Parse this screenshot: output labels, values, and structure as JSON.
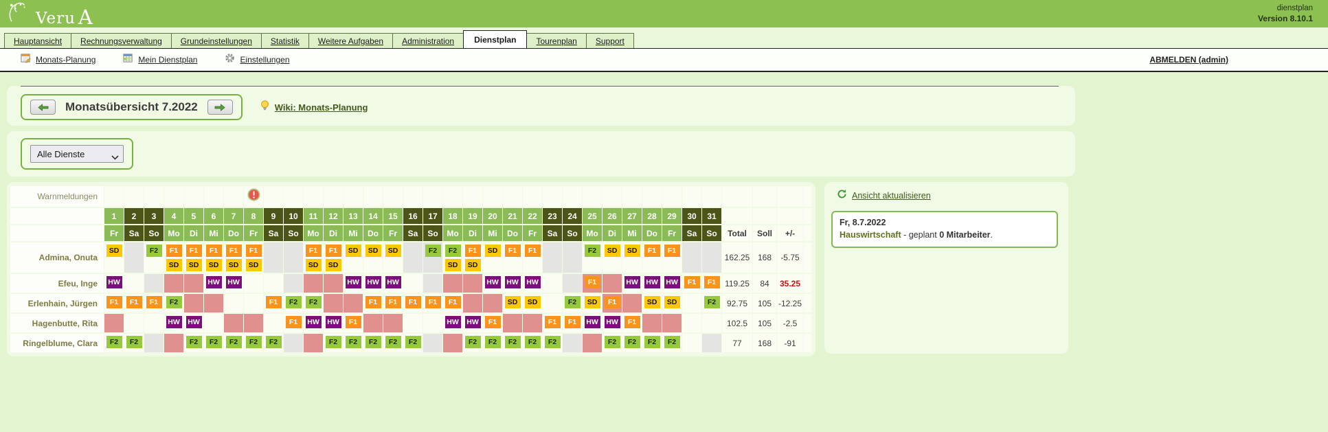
{
  "app": {
    "logo_text": "Veru",
    "logo_a": "A",
    "product": "dienstplan",
    "version": "Version 8.10.1"
  },
  "tabs": [
    {
      "label": "Hauptansicht",
      "active": false
    },
    {
      "label": "Rechnungsverwaltung",
      "active": false
    },
    {
      "label": "Grundeinstellungen",
      "active": false
    },
    {
      "label": "Statistik",
      "active": false
    },
    {
      "label": "Weitere Aufgaben",
      "active": false
    },
    {
      "label": "Administration",
      "active": false
    },
    {
      "label": "Dienstplan",
      "active": true
    },
    {
      "label": "Tourenplan",
      "active": false
    },
    {
      "label": "Support",
      "active": false
    }
  ],
  "toolbar": {
    "links": [
      {
        "label": "Monats-Planung",
        "icon": "calendar-edit-icon"
      },
      {
        "label": "Mein Dienstplan",
        "icon": "calendar-table-icon"
      },
      {
        "label": "Einstellungen",
        "icon": "gear-icon"
      }
    ],
    "logout_label": "ABMELDEN (admin)"
  },
  "month_nav": {
    "title": "Monatsübersicht 7.2022",
    "wiki_link": "Wiki: Monats-Planung"
  },
  "filter": {
    "selected": "Alle Dienste"
  },
  "colors": {
    "accent_green": "#8cc152",
    "header_weekday": "#8abb57",
    "header_weekend": "#4d5418",
    "cell_gray": "#e4e4e2",
    "cell_pink": "#e0908f",
    "diff_alert": "#cc1111"
  },
  "shifts": {
    "SD": {
      "bg": "#fcc800",
      "fg": "#151500"
    },
    "F1": {
      "bg": "#f8941e",
      "fg": "#ffffff"
    },
    "F2": {
      "bg": "#96c93d",
      "fg": "#1c2b00"
    },
    "HW": {
      "bg": "#7d0f7d",
      "fg": "#ffffff"
    }
  },
  "roster": {
    "warn_label": "Warnmeldungen",
    "warning_day": 8,
    "day_names": [
      "Fr",
      "Sa",
      "So",
      "Mo",
      "Di",
      "Mi",
      "Do",
      "Fr",
      "Sa",
      "So",
      "Mo",
      "Di",
      "Mi",
      "Do",
      "Fr",
      "Sa",
      "So",
      "Mo",
      "Di",
      "Mi",
      "Do",
      "Fr",
      "Sa",
      "So",
      "Mo",
      "Di",
      "Mi",
      "Do",
      "Fr",
      "Sa",
      "So"
    ],
    "weekend_days": [
      2,
      3,
      9,
      10,
      16,
      17,
      23,
      24,
      30,
      31
    ],
    "summary_headers": [
      "Total",
      "Soll",
      "+/-"
    ],
    "employees": [
      {
        "name": "Admina, Onuta",
        "cells": [
          "SD",
          "g",
          "F2",
          "F1+SD",
          "F1+SD",
          "F1+SD",
          "F1+SD",
          "F1+SD",
          "g",
          "g",
          "F1+SD",
          "F1+SD",
          "SD",
          "SD",
          "SD",
          "g",
          "g:F2",
          "F2+SD",
          "F1+SD",
          "SD",
          "F1",
          "F1",
          "g",
          "g",
          "F2",
          "SD",
          "SD",
          "F1",
          "F1",
          "g",
          "g"
        ],
        "total": "162.25",
        "soll": "168",
        "diff": "-5.75",
        "diff_alert": false
      },
      {
        "name": "Efeu, Inge",
        "cells": [
          "HW",
          "",
          "g",
          "p",
          "p",
          "HW",
          "HW",
          "",
          "",
          "g",
          "p",
          "p",
          "HW",
          "HW",
          "HW",
          "",
          "g",
          "p",
          "p",
          "HW",
          "HW",
          "HW",
          "",
          "g",
          "p:F1",
          "p",
          "HW",
          "HW",
          "HW",
          "F1",
          "F1"
        ],
        "total": "119.25",
        "soll": "84",
        "diff": "35.25",
        "diff_alert": true
      },
      {
        "name": "Erlenhain, Jürgen",
        "cells": [
          "F1",
          "F1",
          "F1",
          "F2",
          "p",
          "p",
          "",
          "",
          "F1",
          "F2",
          "F2",
          "p",
          "p",
          "F1",
          "F1",
          "F1",
          "F1",
          "F1",
          "p",
          "p",
          "SD",
          "SD",
          "",
          "F2",
          "SD",
          "p:F1",
          "p",
          "SD",
          "SD",
          "",
          "F2"
        ],
        "total": "92.75",
        "soll": "105",
        "diff": "-12.25",
        "diff_alert": false
      },
      {
        "name": "Hagenbutte, Rita",
        "cells": [
          "p",
          "",
          "",
          "HW",
          "HW",
          "",
          "p",
          "p",
          "",
          "F1",
          "HW",
          "HW",
          "F1",
          "p",
          "p",
          "",
          "",
          "HW",
          "HW",
          "F1",
          "p",
          "p",
          "F1",
          "F1",
          "HW",
          "HW",
          "F1",
          "p",
          "p",
          "",
          ""
        ],
        "total": "102.5",
        "soll": "105",
        "diff": "-2.5",
        "diff_alert": false
      },
      {
        "name": "Ringelblume, Clara",
        "cells": [
          "F2",
          "F2",
          "g",
          "p",
          "F2",
          "F2",
          "F2",
          "F2",
          "F2",
          "g",
          "p",
          "F2",
          "F2",
          "F2",
          "F2",
          "F2",
          "g",
          "p",
          "F2",
          "F2",
          "F2",
          "F2",
          "F2",
          "g",
          "p",
          "F2",
          "F2",
          "F2",
          "F2",
          "",
          "g"
        ],
        "total": "77",
        "soll": "168",
        "diff": "-91",
        "diff_alert": false
      }
    ]
  },
  "right_panel": {
    "refresh_label": "Ansicht aktualisieren",
    "info_date": "Fr, 8.7.2022",
    "info_service": "Hauswirtschaft",
    "info_mid": " - geplant ",
    "info_count": "0 Mitarbeiter",
    "info_end": "."
  }
}
